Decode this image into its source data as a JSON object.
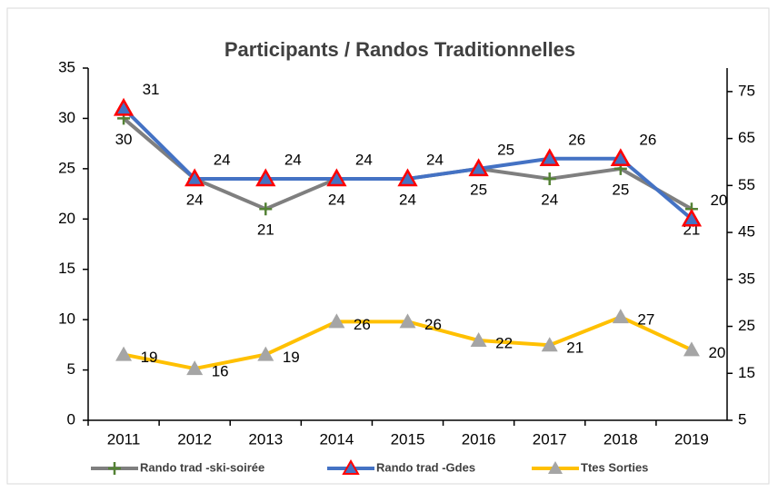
{
  "chart_data": {
    "type": "line",
    "title": "Participants / Randos Traditionnelles",
    "categories": [
      "2011",
      "2012",
      "2013",
      "2014",
      "2015",
      "2016",
      "2017",
      "2018",
      "2019"
    ],
    "series": [
      {
        "name": "Rando trad -ski-soirée",
        "color": "#7f7f7f",
        "marker": "plus",
        "marker_color": "#548235",
        "values": [
          30,
          24,
          21,
          24,
          24,
          25,
          24,
          25,
          21
        ]
      },
      {
        "name": "Rando trad -Gdes",
        "color": "#4472c4",
        "marker": "triangle",
        "marker_color": "#ff0000",
        "values": [
          31,
          24,
          24,
          24,
          24,
          25,
          26,
          26,
          20
        ]
      },
      {
        "name": "Ttes Sorties",
        "color": "#ffc000",
        "marker": "triangle",
        "marker_color": "#a5a5a5",
        "axis": "y2",
        "values": [
          19,
          16,
          19,
          26,
          26,
          22,
          21,
          27,
          20
        ]
      }
    ],
    "ylim": [
      0,
      35
    ],
    "yticks": [
      0,
      5,
      10,
      15,
      20,
      25,
      30,
      35
    ],
    "y2lim": [
      5,
      80
    ],
    "y2ticks": [
      5,
      15,
      25,
      35,
      45,
      55,
      65,
      75
    ],
    "legend": "bottom"
  }
}
